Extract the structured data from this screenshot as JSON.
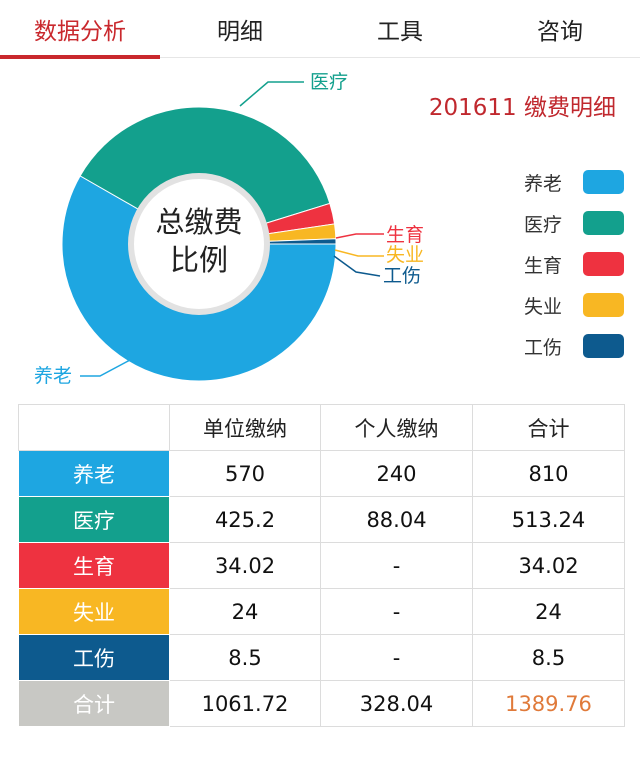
{
  "tabs": [
    {
      "label": "数据分析",
      "active": true
    },
    {
      "label": "明细",
      "active": false
    },
    {
      "label": "工具",
      "active": false
    },
    {
      "label": "咨询",
      "active": false
    }
  ],
  "chart_title": "201611 缴费明细",
  "chart_data": {
    "type": "pie",
    "variant": "donut",
    "title": "201611 缴费明细",
    "center_label": [
      "总缴费",
      "比例"
    ],
    "categories": [
      "养老",
      "医疗",
      "生育",
      "失业",
      "工伤"
    ],
    "values": [
      810,
      513.24,
      34.02,
      24,
      8.5
    ],
    "colors": [
      "#1ea6e1",
      "#13a08d",
      "#ee3240",
      "#f8b723",
      "#0d5a8e"
    ],
    "legend_position": "right"
  },
  "legend": [
    {
      "label": "养老",
      "color": "#1ea6e1"
    },
    {
      "label": "医疗",
      "color": "#13a08d"
    },
    {
      "label": "生育",
      "color": "#ee3240"
    },
    {
      "label": "失业",
      "color": "#f8b723"
    },
    {
      "label": "工伤",
      "color": "#0d5a8e"
    }
  ],
  "table": {
    "headers": [
      "",
      "单位缴纳",
      "个人缴纳",
      "合计"
    ],
    "rows": [
      {
        "label": "养老",
        "color": "#1ea6e1",
        "unit": "570",
        "personal": "240",
        "total": "810"
      },
      {
        "label": "医疗",
        "color": "#13a08d",
        "unit": "425.2",
        "personal": "88.04",
        "total": "513.24"
      },
      {
        "label": "生育",
        "color": "#ee3240",
        "unit": "34.02",
        "personal": "-",
        "total": "34.02"
      },
      {
        "label": "失业",
        "color": "#f8b723",
        "unit": "24",
        "personal": "-",
        "total": "24"
      },
      {
        "label": "工伤",
        "color": "#0d5a8e",
        "unit": "8.5",
        "personal": "-",
        "total": "8.5"
      },
      {
        "label": "合计",
        "color": "#c8c8c4",
        "unit": "1061.72",
        "personal": "328.04",
        "total": "1389.76"
      }
    ]
  }
}
